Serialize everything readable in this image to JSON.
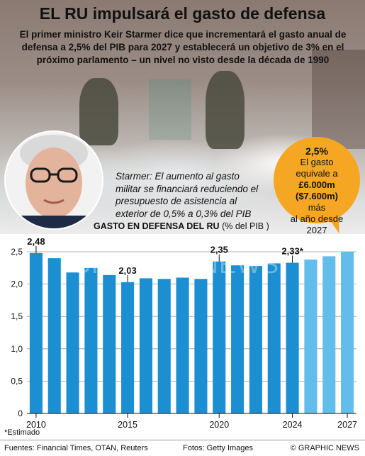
{
  "title": "EL RU impulsará el gasto de defensa",
  "subtitle": "El primer ministro Keir Starmer dice que incrementará el gasto anual de defensa a 2,5% del PIB para 2027 y establecerá un objetivo de 3% en el próximo parlamento – un nivel no visto desde la década de 1990",
  "quote": "Starmer: El aumento al gasto militar se financiará reduciendo el presupuesto de asistencia al exterior de 0,5% a 0,3% del PIB",
  "bubble": {
    "pct": "2,5%",
    "line1": "El gasto",
    "line2": "equivale a",
    "amount": "£6.000m",
    "amount2": "($7.600m)",
    "line3": "más",
    "line4": "al año desde",
    "line5": "2027"
  },
  "chart_title": "GASTO EN DEFENSA DEL RU",
  "chart_unit": "(% del PIB )",
  "watermark": "GRAPHIC NEWS",
  "footnote": "*Estimado",
  "footer": {
    "sources": "Fuentes: Financial Times, OTAN, Reuters",
    "photos": "Fotos: Getty Images",
    "credit": "© GRAPHIC NEWS"
  },
  "colors": {
    "bar_actual": "#1b8fd1",
    "bar_estimate": "#63bdea",
    "bubble": "#f5a623"
  },
  "chart_data": {
    "type": "bar",
    "categories": [
      "2010",
      "2011",
      "2012",
      "2013",
      "2014",
      "2015",
      "2016",
      "2017",
      "2018",
      "2019",
      "2020",
      "2021",
      "2022",
      "2023",
      "2024",
      "2025",
      "2026",
      "2027"
    ],
    "values": [
      2.48,
      2.4,
      2.18,
      2.25,
      2.14,
      2.03,
      2.09,
      2.08,
      2.1,
      2.08,
      2.35,
      2.29,
      2.28,
      2.32,
      2.33,
      2.38,
      2.43,
      2.5
    ],
    "estimated_from": "2024",
    "value_labels": [
      {
        "category": "2010",
        "text": "2,48"
      },
      {
        "category": "2015",
        "text": "2,03"
      },
      {
        "category": "2020",
        "text": "2,35"
      },
      {
        "category": "2024",
        "text": "2,33*"
      }
    ],
    "x_tick_labels": [
      {
        "category": "2010",
        "text": "2010"
      },
      {
        "category": "2015",
        "text": "2015"
      },
      {
        "category": "2020",
        "text": "2020"
      },
      {
        "category": "2024",
        "text": "2024"
      },
      {
        "category": "2027",
        "text": "2027"
      }
    ],
    "y_ticks": [
      0,
      0.5,
      1.0,
      1.5,
      2.0,
      2.5
    ],
    "y_tick_labels": [
      "0",
      "0,5",
      "1,0",
      "1,5",
      "2,0",
      "2,5"
    ],
    "ylim": [
      0,
      2.5
    ],
    "grid": true,
    "legend": "none"
  }
}
